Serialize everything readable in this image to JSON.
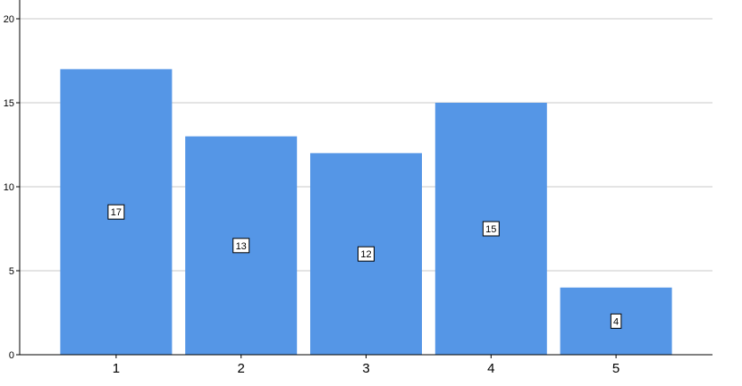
{
  "chart_data": {
    "type": "bar",
    "categories": [
      "1",
      "2",
      "3",
      "4",
      "5"
    ],
    "values": [
      17,
      13,
      12,
      15,
      4
    ],
    "data_labels": [
      "17",
      "13",
      "12",
      "15",
      "4"
    ],
    "title": "",
    "xlabel": "",
    "ylabel": "",
    "ylim": [
      0,
      20
    ],
    "y_ticks": [
      0,
      5,
      10,
      15,
      20
    ],
    "y_tick_labels": [
      "0",
      "5",
      "10",
      "15",
      "20"
    ],
    "grid": "horizontal",
    "legend": "none",
    "colors": {
      "bar": "#5596e6",
      "grid": "#c8c8c8",
      "axis": "#000000",
      "label_box": "#ffffff"
    }
  }
}
